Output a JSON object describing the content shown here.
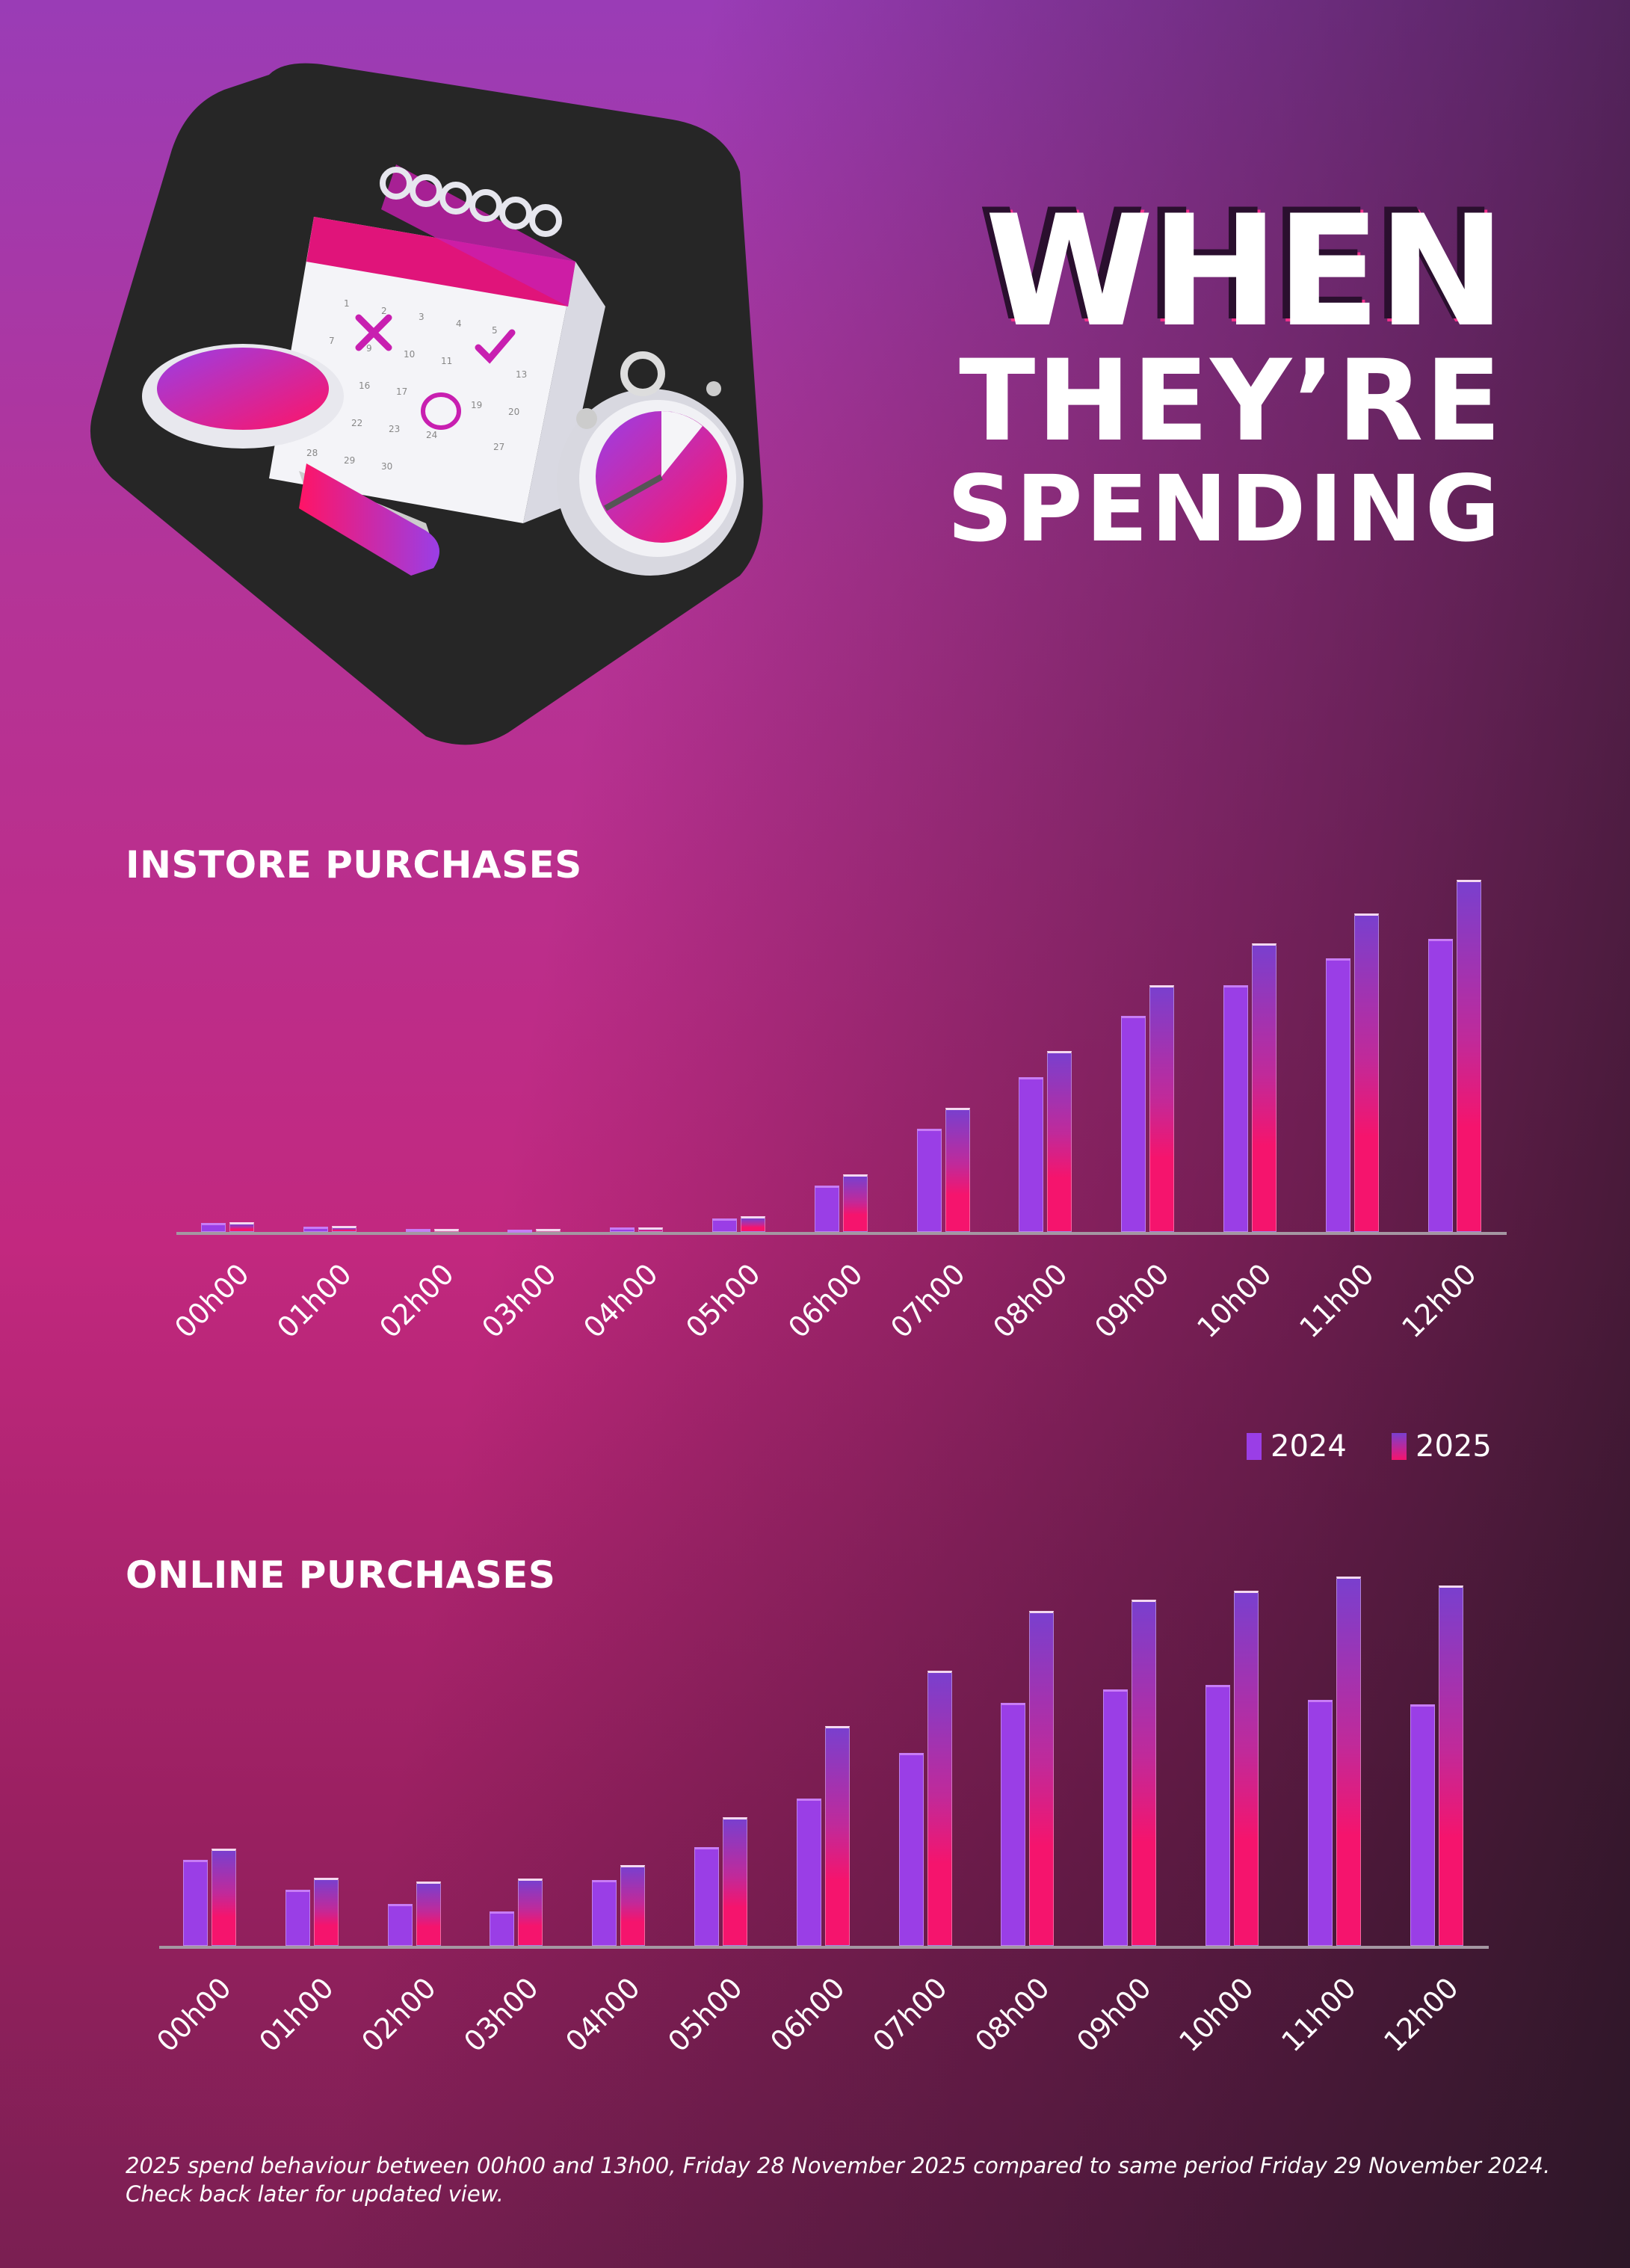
{
  "title": {
    "line1": "WHEN",
    "line2": "THEY’RE",
    "line3": "SPENDING"
  },
  "colors": {
    "series_2024": "#9a3ee6",
    "series_2025": "#f5146d",
    "background_top": "#9a3cb6",
    "background_bottom_right": "#2e1a28"
  },
  "illustration": {
    "icons": [
      "calendar-icon",
      "magnifying-glass-icon",
      "stopwatch-icon"
    ]
  },
  "legend": {
    "position": "right",
    "items": [
      {
        "label": "2024"
      },
      {
        "label": "2025"
      }
    ]
  },
  "chart_data": [
    {
      "type": "bar",
      "title": "INSTORE PURCHASES",
      "categories": [
        "00h00",
        "01h00",
        "02h00",
        "03h00",
        "04h00",
        "05h00",
        "06h00",
        "07h00",
        "08h00",
        "09h00",
        "10h00",
        "11h00",
        "12h00"
      ],
      "series": [
        {
          "name": "2024",
          "values": [
            2.6,
            1.5,
            0.9,
            0.7,
            1.2,
            3.8,
            13.1,
            29.4,
            44.0,
            61.3,
            70.1,
            77.8,
            83.3
          ]
        },
        {
          "name": "2025",
          "values": [
            2.7,
            1.7,
            0.9,
            0.8,
            1.2,
            4.4,
            16.4,
            35.3,
            51.3,
            70.0,
            82.0,
            90.4,
            100
          ]
        }
      ],
      "xlabel": "",
      "ylabel": "",
      "grid": false,
      "y_axis_shown": false
    },
    {
      "type": "bar",
      "title": "ONLINE PURCHASES",
      "categories": [
        "00h00",
        "01h00",
        "02h00",
        "03h00",
        "04h00",
        "05h00",
        "06h00",
        "07h00",
        "08h00",
        "09h00",
        "10h00",
        "11h00",
        "12h00"
      ],
      "series": [
        {
          "name": "2024",
          "values": [
            23.2,
            15.1,
            11.4,
            9.4,
            17.9,
            26.7,
            39.8,
            52.3,
            65.7,
            69.4,
            70.6,
            66.6,
            65.3
          ]
        },
        {
          "name": "2025",
          "values": [
            26.3,
            18.4,
            17.4,
            18.2,
            21.8,
            34.8,
            59.5,
            74.5,
            90.7,
            93.8,
            96.2,
            100,
            97.6
          ]
        }
      ],
      "xlabel": "",
      "ylabel": "",
      "grid": false,
      "y_axis_shown": false
    }
  ],
  "footer": {
    "line1": "2025 spend behaviour between 00h00 and 13h00, Friday 28 November 2025 compared to same period Friday 29 November 2024.",
    "line2": "Check back later for updated view."
  }
}
